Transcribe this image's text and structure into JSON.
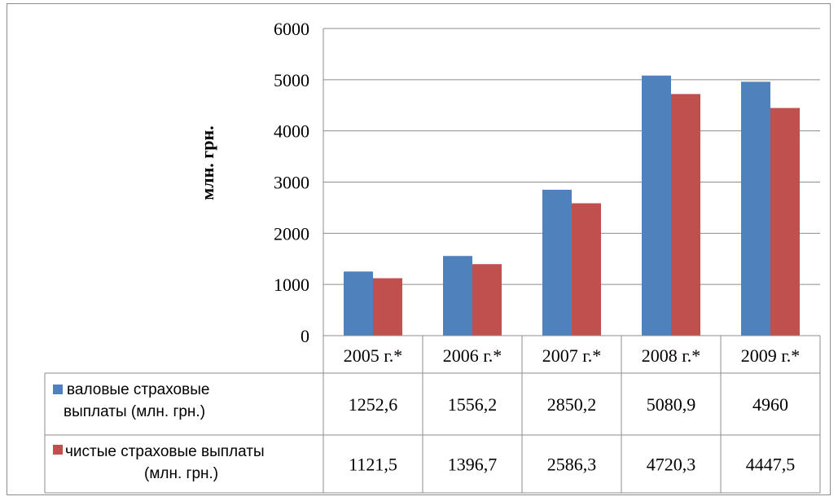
{
  "chart_data": {
    "type": "bar",
    "categories": [
      "2005 г.*",
      "2006 г.*",
      "2007 г.*",
      "2008 г.*",
      "2009 г.*"
    ],
    "series": [
      {
        "name": "валовые страховые выплаты (млн. грн.)",
        "name_lines": [
          "валовые страховые",
          "выплаты (млн. грн.)"
        ],
        "color": "#4f81bd",
        "values": [
          1252.6,
          1556.2,
          2850.2,
          5080.9,
          4960
        ],
        "value_labels": [
          "1252,6",
          "1556,2",
          "2850,2",
          "5080,9",
          "4960"
        ]
      },
      {
        "name": "чистые страховые выплаты (млн. грн.)",
        "name_lines": [
          "чистые страховые выплаты",
          "(млн. грн.)"
        ],
        "color": "#c0504d",
        "values": [
          1121.5,
          1396.7,
          2586.3,
          4720.3,
          4447.5
        ],
        "value_labels": [
          "1121,5",
          "1396,7",
          "2586,3",
          "4720,3",
          "4447,5"
        ]
      }
    ],
    "ylabel": "млн. грн.",
    "ylim": [
      0,
      6000
    ],
    "yticks": [
      0,
      1000,
      2000,
      3000,
      4000,
      5000,
      6000
    ],
    "grid": true,
    "legend": "data-table"
  }
}
